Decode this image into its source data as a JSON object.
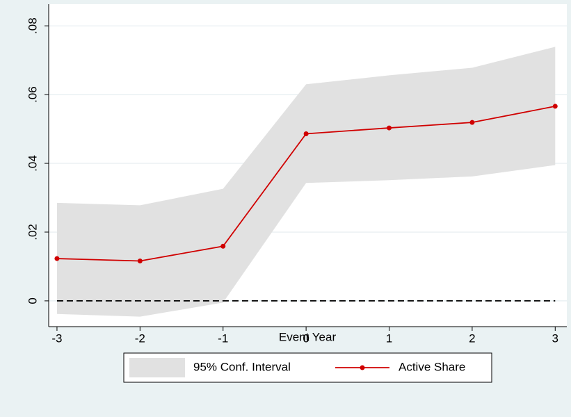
{
  "chart_data": {
    "type": "line",
    "x": [
      -3,
      -2,
      -1,
      0,
      1,
      2,
      3
    ],
    "x_label": "Event Year",
    "xlim": [
      -3.1,
      3.14
    ],
    "xticks": [
      -3,
      -2,
      -1,
      0,
      1,
      2,
      3
    ],
    "ylim": [
      -0.0075,
      0.0863
    ],
    "yticks": [
      0,
      {
        "value": 0.02,
        "label": ".02"
      },
      {
        "value": 0.04,
        "label": ".04"
      },
      {
        "value": 0.06,
        "label": ".06"
      },
      {
        "value": 0.08,
        "label": ".08"
      }
    ],
    "grid": true,
    "hline": 0,
    "legend": "bottom",
    "series": [
      {
        "name": "95% Conf. Interval",
        "type": "area",
        "color": "#e1e1e1",
        "upper": [
          0.0285,
          0.0278,
          0.0326,
          0.063,
          0.0656,
          0.0678,
          0.0739
        ],
        "lower": [
          -0.0038,
          -0.0046,
          -0.0005,
          0.0343,
          0.0351,
          0.0362,
          0.0395
        ]
      },
      {
        "name": "Active Share",
        "type": "line",
        "color": "#d00000",
        "values": [
          0.0123,
          0.0116,
          0.0159,
          0.0486,
          0.0503,
          0.0519,
          0.0566
        ]
      }
    ]
  }
}
